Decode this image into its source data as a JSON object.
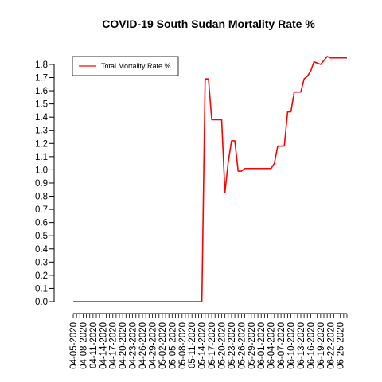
{
  "chart_data": {
    "type": "line",
    "title": "COVID-19 South Sudan Mortality Rate %",
    "xlabel": "",
    "ylabel": "",
    "start_date": "2020-04-05",
    "end_date": "2020-06-27",
    "x_tick_labels": [
      "04-05-2020",
      "04-08-2020",
      "04-11-2020",
      "04-14-2020",
      "04-17-2020",
      "04-20-2020",
      "04-23-2020",
      "04-26-2020",
      "04-29-2020",
      "05-02-2020",
      "05-05-2020",
      "05-08-2020",
      "05-11-2020",
      "05-14-2020",
      "05-17-2020",
      "05-20-2020",
      "05-23-2020",
      "05-26-2020",
      "05-29-2020",
      "06-01-2020",
      "06-04-2020",
      "06-07-2020",
      "06-10-2020",
      "06-13-2020",
      "06-16-2020",
      "06-19-2020",
      "06-22-2020",
      "06-25-2020"
    ],
    "y_ticks": [
      0.0,
      0.1,
      0.2,
      0.3,
      0.4,
      0.5,
      0.6,
      0.7,
      0.8,
      0.9,
      1.0,
      1.1,
      1.2,
      1.3,
      1.4,
      1.5,
      1.6,
      1.7,
      1.8
    ],
    "y_tick_labels": [
      "0.0",
      "0.1",
      "0.2",
      "0.3",
      "0.4",
      "0.5",
      "0.6",
      "0.7",
      "0.8",
      "0.9",
      "1.0",
      "1.1",
      "1.2",
      "1.3",
      "1.4",
      "1.5",
      "1.6",
      "1.7",
      "1.8"
    ],
    "ylim": [
      0,
      1.86
    ],
    "legend_position": "top-left",
    "grid": false,
    "series": [
      {
        "name": "Total Mortality Rate %",
        "color": "#ff0000",
        "x": [
          "2020-04-05",
          "2020-05-14",
          "2020-05-15",
          "2020-05-16",
          "2020-05-17",
          "2020-05-20",
          "2020-05-21",
          "2020-05-22",
          "2020-05-23",
          "2020-05-24",
          "2020-05-25",
          "2020-05-26",
          "2020-05-27",
          "2020-05-28",
          "2020-06-04",
          "2020-06-05",
          "2020-06-06",
          "2020-06-07",
          "2020-06-08",
          "2020-06-09",
          "2020-06-10",
          "2020-06-11",
          "2020-06-12",
          "2020-06-13",
          "2020-06-14",
          "2020-06-15",
          "2020-06-16",
          "2020-06-17",
          "2020-06-18",
          "2020-06-19",
          "2020-06-20",
          "2020-06-21",
          "2020-06-22",
          "2020-06-23",
          "2020-06-24",
          "2020-06-25",
          "2020-06-26",
          "2020-06-27"
        ],
        "y": [
          0.0,
          0.0,
          1.69,
          1.69,
          1.38,
          1.38,
          0.83,
          1.06,
          1.22,
          1.22,
          0.99,
          0.99,
          1.01,
          1.01,
          1.01,
          1.05,
          1.18,
          1.18,
          1.18,
          1.44,
          1.44,
          1.59,
          1.59,
          1.59,
          1.69,
          1.71,
          1.75,
          1.82,
          1.81,
          1.8,
          1.83,
          1.86,
          1.85,
          1.85,
          1.85,
          1.85,
          1.85,
          1.85
        ]
      }
    ]
  }
}
